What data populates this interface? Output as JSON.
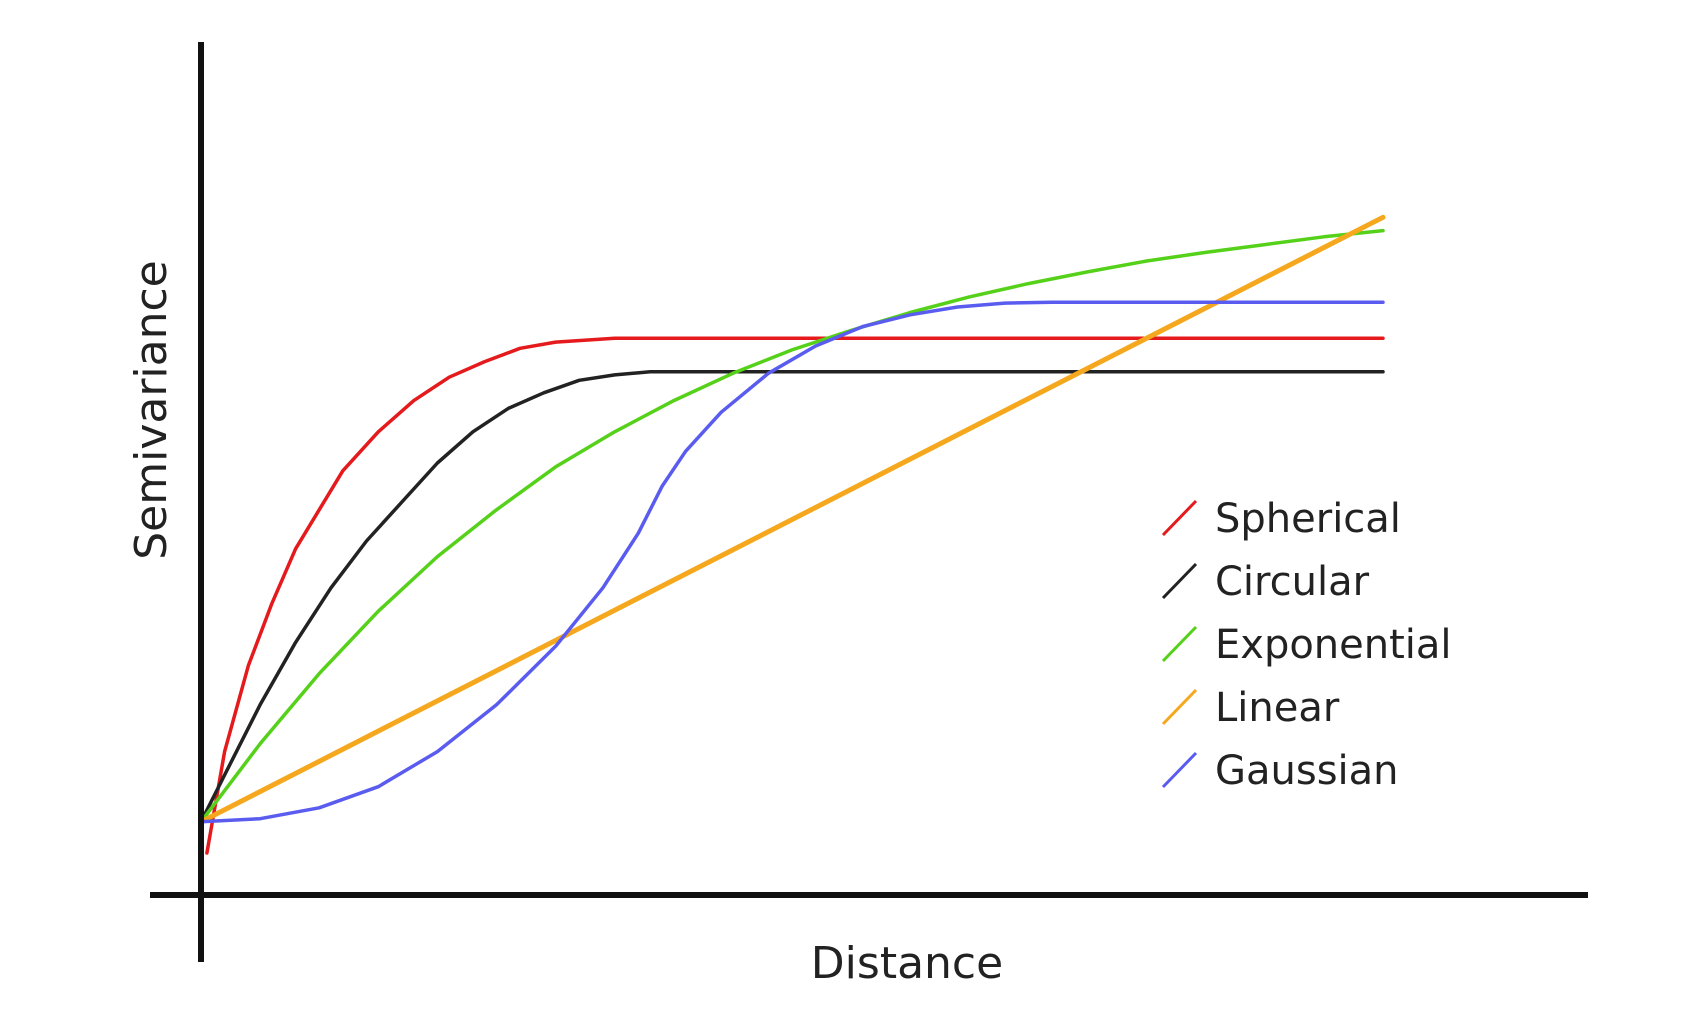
{
  "chart_data": {
    "type": "line",
    "title": "",
    "xlabel": "Distance",
    "ylabel": "Semivariance",
    "xlim": [
      0,
      100
    ],
    "ylim": [
      0,
      100
    ],
    "grid": false,
    "ticks": false,
    "legend_position": "right",
    "series": [
      {
        "name": "Spherical",
        "color": "#e41a1c",
        "points": [
          [
            0.5,
            5
          ],
          [
            2,
            18
          ],
          [
            4,
            29
          ],
          [
            6,
            37
          ],
          [
            8,
            44
          ],
          [
            10,
            49
          ],
          [
            12,
            54
          ],
          [
            15,
            59
          ],
          [
            18,
            63
          ],
          [
            21,
            66
          ],
          [
            24,
            68
          ],
          [
            27,
            69.7
          ],
          [
            30,
            70.5
          ],
          [
            35,
            71
          ],
          [
            40,
            71
          ],
          [
            60,
            71
          ],
          [
            80,
            71
          ],
          [
            100,
            71
          ]
        ]
      },
      {
        "name": "Circular",
        "color": "#222222",
        "points": [
          [
            0,
            9
          ],
          [
            2,
            15
          ],
          [
            5,
            24
          ],
          [
            8,
            32
          ],
          [
            11,
            39
          ],
          [
            14,
            45
          ],
          [
            17,
            50
          ],
          [
            20,
            55
          ],
          [
            23,
            59
          ],
          [
            26,
            62
          ],
          [
            29,
            64
          ],
          [
            32,
            65.6
          ],
          [
            35,
            66.3
          ],
          [
            38,
            66.7
          ],
          [
            40,
            66.7
          ],
          [
            60,
            66.7
          ],
          [
            80,
            66.7
          ],
          [
            100,
            66.7
          ]
        ]
      },
      {
        "name": "Exponential",
        "color": "#55d11a",
        "points": [
          [
            0,
            9
          ],
          [
            5,
            19
          ],
          [
            10,
            28
          ],
          [
            15,
            36
          ],
          [
            20,
            43
          ],
          [
            25,
            49
          ],
          [
            30,
            54.5
          ],
          [
            35,
            59
          ],
          [
            40,
            63
          ],
          [
            45,
            66.5
          ],
          [
            50,
            69.5
          ],
          [
            55,
            72
          ],
          [
            60,
            74.3
          ],
          [
            65,
            76.3
          ],
          [
            70,
            78
          ],
          [
            75,
            79.5
          ],
          [
            80,
            80.9
          ],
          [
            85,
            82
          ],
          [
            90,
            83
          ],
          [
            95,
            84
          ],
          [
            100,
            84.8
          ]
        ]
      },
      {
        "name": "Linear",
        "color": "#f5a81d",
        "points": [
          [
            0,
            9
          ],
          [
            100,
            86.5
          ]
        ]
      },
      {
        "name": "Gaussian",
        "color": "#5a5cf0",
        "points": [
          [
            0,
            9
          ],
          [
            5,
            9.4
          ],
          [
            10,
            10.8
          ],
          [
            15,
            13.5
          ],
          [
            20,
            18
          ],
          [
            25,
            24
          ],
          [
            30,
            31.5
          ],
          [
            34,
            39
          ],
          [
            37,
            46
          ],
          [
            39,
            52
          ],
          [
            41,
            56.5
          ],
          [
            44,
            61.5
          ],
          [
            48,
            66.5
          ],
          [
            52,
            70
          ],
          [
            56,
            72.5
          ],
          [
            60,
            74
          ],
          [
            64,
            75
          ],
          [
            68,
            75.5
          ],
          [
            72,
            75.6
          ],
          [
            80,
            75.6
          ],
          [
            90,
            75.6
          ],
          [
            100,
            75.6
          ]
        ]
      }
    ]
  }
}
